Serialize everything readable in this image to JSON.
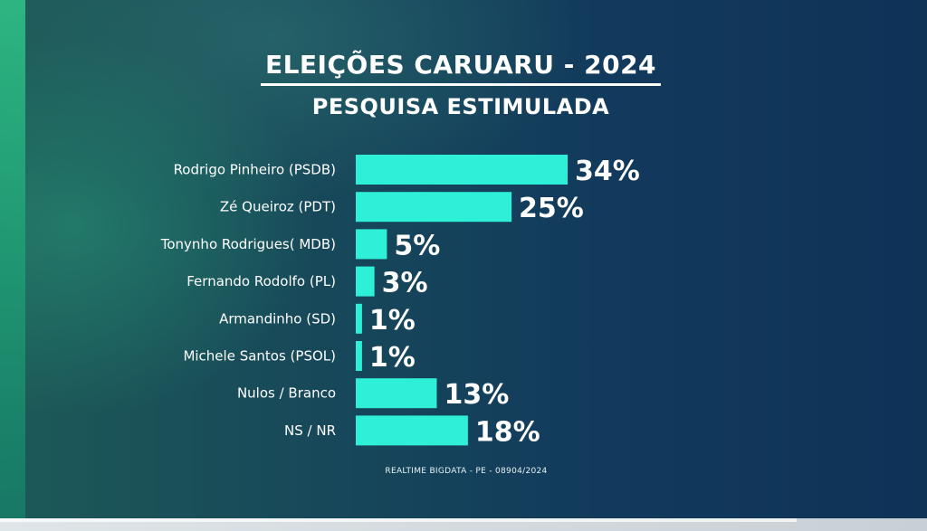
{
  "title": "ELEIÇÕES CARUARU - 2024",
  "subtitle": "PESQUISA ESTIMULADA",
  "source": "REALTIME BIGDATA - PE - 08904/2024",
  "colors": {
    "bar": "#2ef0d8",
    "text": "#ffffff"
  },
  "chart_data": {
    "type": "bar",
    "orientation": "horizontal",
    "title": "ELEIÇÕES CARUARU - 2024",
    "subtitle": "PESQUISA ESTIMULADA",
    "categories": [
      "Rodrigo Pinheiro (PSDB)",
      "Zé Queiroz (PDT)",
      "Tonynho Rodrigues( MDB)",
      "Fernando Rodolfo (PL)",
      "Armandinho (SD)",
      "Michele Santos (PSOL)",
      "Nulos / Branco",
      "NS / NR"
    ],
    "values": [
      34,
      25,
      5,
      3,
      1,
      1,
      13,
      18
    ],
    "value_labels": [
      "34%",
      "25%",
      "5%",
      "3%",
      "1%",
      "1%",
      "13%",
      "18%"
    ],
    "unit": "%",
    "xlim": [
      0,
      34
    ],
    "grid": false,
    "legend": "none"
  }
}
